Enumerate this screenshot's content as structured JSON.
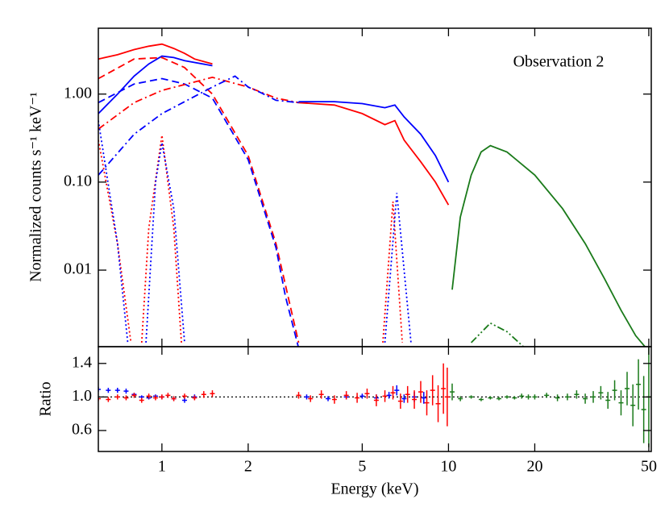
{
  "chart_data": [
    {
      "type": "line",
      "ylabel": "Normalized counts s⁻¹ keV⁻¹",
      "annotation": "Observation 2",
      "xscale": "log",
      "yscale": "log",
      "xlim": [
        0.6,
        51
      ],
      "ylim": [
        0.00135,
        5.6
      ],
      "xticks": [
        1,
        2,
        5,
        10,
        20,
        50
      ],
      "yticks": [
        {
          "value": 1,
          "label": "1.00"
        },
        {
          "value": 0.1,
          "label": "0.10"
        },
        {
          "value": 0.01,
          "label": "0.01"
        }
      ],
      "series": [
        {
          "color": "#ff0000",
          "style": "solid",
          "x": [
            0.6,
            0.7,
            0.8,
            0.9,
            1.0,
            1.1,
            1.2,
            1.3,
            1.5,
            null,
            3.0,
            4.0,
            5.0,
            6.0,
            6.5,
            7.0,
            8.0,
            9.0,
            10.0
          ],
          "values": [
            2.5,
            2.8,
            3.2,
            3.5,
            3.7,
            3.3,
            2.9,
            2.5,
            2.2,
            null,
            0.8,
            0.75,
            0.6,
            0.45,
            0.5,
            0.3,
            0.17,
            0.1,
            0.055
          ]
        },
        {
          "color": "#0000ff",
          "style": "solid",
          "x": [
            0.6,
            0.7,
            0.8,
            0.9,
            1.0,
            1.1,
            1.2,
            1.5,
            null,
            3.0,
            4.0,
            5.0,
            6.0,
            6.5,
            7.0,
            8.0,
            9.0,
            10.0
          ],
          "values": [
            0.6,
            1.0,
            1.6,
            2.2,
            2.7,
            2.6,
            2.4,
            2.1,
            null,
            0.82,
            0.82,
            0.78,
            0.7,
            0.75,
            0.55,
            0.35,
            0.2,
            0.1
          ]
        },
        {
          "color": "#ff0000",
          "style": "dashed",
          "x": [
            0.6,
            0.8,
            1.0,
            1.2,
            1.5,
            2.0,
            2.5,
            3.0
          ],
          "values": [
            1.5,
            2.5,
            2.6,
            2.0,
            1.0,
            0.2,
            0.02,
            0.0015
          ]
        },
        {
          "color": "#0000ff",
          "style": "dashed",
          "x": [
            0.6,
            0.8,
            1.0,
            1.2,
            1.5,
            2.0,
            2.5,
            2.7,
            3.0
          ],
          "values": [
            0.8,
            1.3,
            1.5,
            1.3,
            0.9,
            0.18,
            0.018,
            0.005,
            0.0013
          ]
        },
        {
          "color": "#ff0000",
          "style": "dashdot",
          "x": [
            0.6,
            0.8,
            1.0,
            1.5,
            2.0,
            2.5,
            3.0
          ],
          "values": [
            0.4,
            0.8,
            1.1,
            1.55,
            1.2,
            0.9,
            0.8
          ]
        },
        {
          "color": "#0000ff",
          "style": "dashdot",
          "x": [
            0.6,
            0.8,
            1.0,
            1.5,
            1.8,
            2.0,
            2.2,
            2.5,
            3.0
          ],
          "values": [
            0.12,
            0.35,
            0.6,
            1.2,
            1.6,
            1.2,
            1.05,
            0.85,
            0.8
          ]
        },
        {
          "color": "#ff0000",
          "style": "dotted",
          "x": [
            0.6,
            0.7,
            0.78,
            null,
            0.85,
            0.9,
            1.0,
            1.1,
            1.17,
            null,
            5.9,
            6.4,
            6.9
          ],
          "values": [
            0.3,
            0.02,
            0.0015,
            null,
            0.0015,
            0.03,
            0.34,
            0.03,
            0.0015,
            null,
            0.0015,
            0.06,
            0.0015
          ]
        },
        {
          "color": "#0000ff",
          "style": "dotted",
          "x": [
            0.6,
            0.7,
            0.76,
            null,
            0.88,
            0.95,
            1.0,
            1.1,
            1.2,
            null,
            6.0,
            6.6,
            7.4
          ],
          "values": [
            0.5,
            0.02,
            0.0015,
            null,
            0.0015,
            0.1,
            0.28,
            0.05,
            0.0015,
            null,
            0.0015,
            0.075,
            0.0015
          ]
        },
        {
          "color": "#1a7a1a",
          "style": "solid",
          "x": [
            10.3,
            11,
            12,
            13,
            14,
            16,
            20,
            25,
            30,
            35,
            40,
            45,
            50
          ],
          "values": [
            0.006,
            0.04,
            0.12,
            0.22,
            0.26,
            0.22,
            0.12,
            0.05,
            0.02,
            0.008,
            0.0035,
            0.0018,
            0.0012
          ]
        },
        {
          "color": "#1a7a1a",
          "style": "dashdotdot",
          "x": [
            12,
            14,
            16,
            19
          ],
          "values": [
            0.0015,
            0.0025,
            0.002,
            0.0012
          ]
        }
      ]
    },
    {
      "type": "scatter",
      "xlabel": "Energy (keV)",
      "ylabel": "Ratio",
      "xscale": "log",
      "xlim": [
        0.6,
        51
      ],
      "ylim": [
        0.35,
        1.6
      ],
      "xticks": [
        1,
        2,
        5,
        10,
        20,
        50
      ],
      "yticks": [
        1.4,
        {
          "value": 1,
          "label": "1.0"
        },
        0.6
      ],
      "reference_line": 1,
      "series": [
        {
          "color": "#0000ff",
          "x": [
            0.6,
            0.65,
            0.7,
            0.75,
            0.8,
            0.85,
            0.9,
            0.95,
            1.0,
            1.1,
            1.2,
            1.3,
            3.2,
            3.8,
            4.4,
            5.0,
            5.6,
            6.2,
            6.6,
            7.0,
            7.6,
            8.2
          ],
          "values": [
            1.09,
            1.08,
            1.08,
            1.07,
            1.03,
            1.0,
            0.99,
            1.01,
            1.0,
            0.98,
            0.96,
            1.0,
            1.0,
            0.98,
            1.0,
            1.01,
            0.99,
            1.02,
            1.08,
            0.98,
            1.0,
            0.99
          ],
          "errors": [
            0.03,
            0.03,
            0.03,
            0.03,
            0.02,
            0.02,
            0.02,
            0.02,
            0.02,
            0.02,
            0.03,
            0.03,
            0.03,
            0.03,
            0.03,
            0.03,
            0.04,
            0.04,
            0.06,
            0.05,
            0.06,
            0.07
          ]
        },
        {
          "color": "#ff0000",
          "x": [
            0.6,
            0.65,
            0.7,
            0.75,
            0.8,
            0.85,
            0.9,
            0.95,
            1.0,
            1.05,
            1.1,
            1.2,
            1.3,
            1.4,
            1.5,
            3.0,
            3.3,
            3.6,
            4.0,
            4.4,
            4.8,
            5.2,
            5.6,
            6.0,
            6.4,
            6.8,
            7.2,
            7.6,
            8.0,
            8.4,
            8.8,
            9.2,
            9.6,
            9.9
          ],
          "values": [
            0.98,
            0.97,
            1.0,
            0.99,
            1.02,
            0.96,
            1.01,
            0.99,
            1.0,
            1.02,
            0.98,
            1.01,
            0.99,
            1.03,
            1.04,
            1.02,
            0.98,
            1.03,
            0.97,
            1.02,
            0.99,
            1.04,
            0.96,
            1.01,
            1.05,
            0.95,
            1.03,
            0.97,
            1.06,
            0.93,
            1.08,
            0.92,
            1.1,
            1.0
          ],
          "errors": [
            0.03,
            0.03,
            0.03,
            0.03,
            0.03,
            0.03,
            0.03,
            0.03,
            0.03,
            0.03,
            0.03,
            0.03,
            0.03,
            0.04,
            0.04,
            0.04,
            0.04,
            0.05,
            0.05,
            0.05,
            0.06,
            0.06,
            0.07,
            0.07,
            0.08,
            0.09,
            0.1,
            0.11,
            0.13,
            0.15,
            0.18,
            0.22,
            0.3,
            0.35
          ]
        },
        {
          "color": "#1a7a1a",
          "x": [
            10.3,
            11,
            12,
            13,
            14,
            15,
            16,
            17,
            18,
            19,
            20,
            22,
            24,
            26,
            28,
            30,
            32,
            34,
            36,
            38,
            40,
            42,
            44,
            46,
            48,
            50
          ],
          "values": [
            1.06,
            0.98,
            1.0,
            0.97,
            0.99,
            0.98,
            1.0,
            0.99,
            1.01,
            1.0,
            1.0,
            1.02,
            0.99,
            1.0,
            1.03,
            0.98,
            1.0,
            1.05,
            0.96,
            1.08,
            0.93,
            1.1,
            0.9,
            1.15,
            0.85,
            1.0
          ],
          "errors": [
            0.1,
            0.03,
            0.02,
            0.02,
            0.02,
            0.02,
            0.02,
            0.02,
            0.03,
            0.03,
            0.03,
            0.03,
            0.04,
            0.04,
            0.05,
            0.06,
            0.07,
            0.08,
            0.1,
            0.12,
            0.15,
            0.2,
            0.25,
            0.3,
            0.4,
            0.6
          ]
        }
      ]
    }
  ]
}
